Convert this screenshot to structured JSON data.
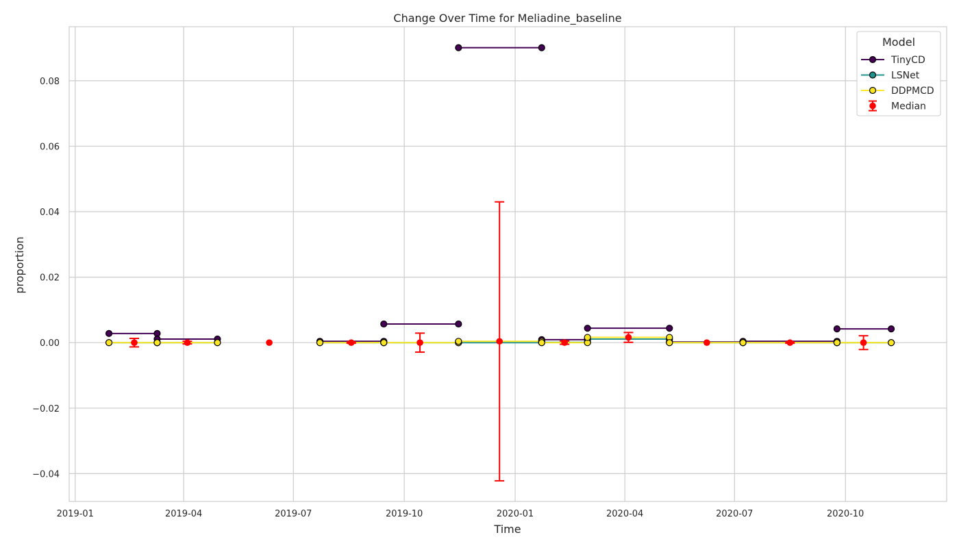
{
  "chart_data": {
    "type": "line",
    "title": "Change Over Time for Meliadine_baseline",
    "xlabel": "Time",
    "ylabel": "proportion",
    "xlim": [
      "2018-12-27",
      "2020-12-24"
    ],
    "ylim": [
      -0.0485,
      0.0965
    ],
    "x_ticks": [
      "2019-01",
      "2019-04",
      "2019-07",
      "2019-10",
      "2020-01",
      "2020-04",
      "2020-07",
      "2020-10"
    ],
    "y_ticks": [
      -0.04,
      -0.02,
      0.0,
      0.02,
      0.04,
      0.06,
      0.08
    ],
    "y_tick_labels": [
      "−0.04",
      "−0.02",
      "0.00",
      "0.02",
      "0.04",
      "0.06",
      "0.08"
    ],
    "grid": true,
    "legend": {
      "title": "Model",
      "placement": "top-right"
    },
    "series": [
      {
        "name": "TinyCD",
        "color": "#440154",
        "segments": [
          {
            "x": [
              "2019-01-29",
              "2019-03-10"
            ],
            "y": [
              0.0028,
              0.0028
            ]
          },
          {
            "x": [
              "2019-03-10",
              "2019-04-29"
            ],
            "y": [
              0.0011,
              0.0011
            ]
          },
          {
            "x": [
              "2019-07-23",
              "2019-09-14"
            ],
            "y": [
              0.0004,
              0.0004
            ]
          },
          {
            "x": [
              "2019-09-14",
              "2019-11-15"
            ],
            "y": [
              0.0057,
              0.0057
            ]
          },
          {
            "x": [
              "2019-11-15",
              "2020-01-23"
            ],
            "y": [
              0.0901,
              0.0901
            ]
          },
          {
            "x": [
              "2020-01-23",
              "2020-03-01"
            ],
            "y": [
              0.0009,
              0.0009
            ]
          },
          {
            "x": [
              "2020-03-01",
              "2020-05-08"
            ],
            "y": [
              0.0044,
              0.0044
            ]
          },
          {
            "x": [
              "2020-05-08",
              "2020-07-08"
            ],
            "y": [
              0.0002,
              0.0002
            ]
          },
          {
            "x": [
              "2020-07-08",
              "2020-09-24"
            ],
            "y": [
              0.0004,
              0.0004
            ]
          },
          {
            "x": [
              "2020-09-24",
              "2020-11-08"
            ],
            "y": [
              0.0042,
              0.0042
            ]
          }
        ]
      },
      {
        "name": "LSNet",
        "color": "#21918c",
        "segments": [
          {
            "x": [
              "2019-01-29",
              "2019-03-10"
            ],
            "y": [
              0.0,
              0.0
            ]
          },
          {
            "x": [
              "2019-03-10",
              "2019-04-29"
            ],
            "y": [
              0.0,
              0.0
            ]
          },
          {
            "x": [
              "2019-07-23",
              "2019-09-14"
            ],
            "y": [
              0.0,
              0.0
            ]
          },
          {
            "x": [
              "2019-09-14",
              "2019-11-15"
            ],
            "y": [
              0.0,
              0.0
            ]
          },
          {
            "x": [
              "2019-11-15",
              "2020-01-23"
            ],
            "y": [
              0.0,
              0.0
            ]
          },
          {
            "x": [
              "2020-01-23",
              "2020-03-01"
            ],
            "y": [
              0.0001,
              0.0001
            ]
          },
          {
            "x": [
              "2020-03-01",
              "2020-05-08"
            ],
            "y": [
              0.0011,
              0.0011
            ]
          },
          {
            "x": [
              "2020-05-08",
              "2020-07-08"
            ],
            "y": [
              0.0,
              0.0
            ]
          },
          {
            "x": [
              "2020-07-08",
              "2020-09-24"
            ],
            "y": [
              0.0,
              0.0
            ]
          },
          {
            "x": [
              "2020-09-24",
              "2020-11-08"
            ],
            "y": [
              0.0,
              0.0
            ]
          }
        ]
      },
      {
        "name": "DDPMCD",
        "color": "#fde725",
        "segments": [
          {
            "x": [
              "2019-01-29",
              "2019-03-10"
            ],
            "y": [
              0.0,
              0.0
            ]
          },
          {
            "x": [
              "2019-03-10",
              "2019-04-29"
            ],
            "y": [
              0.0,
              0.0
            ]
          },
          {
            "x": [
              "2019-07-23",
              "2019-09-14"
            ],
            "y": [
              0.0,
              0.0
            ]
          },
          {
            "x": [
              "2019-09-14",
              "2019-11-15"
            ],
            "y": [
              0.0,
              0.0
            ]
          },
          {
            "x": [
              "2019-11-15",
              "2020-01-23"
            ],
            "y": [
              0.0004,
              0.0004
            ]
          },
          {
            "x": [
              "2020-01-23",
              "2020-03-01"
            ],
            "y": [
              0.0,
              0.0
            ]
          },
          {
            "x": [
              "2020-03-01",
              "2020-05-08"
            ],
            "y": [
              0.0016,
              0.0016
            ]
          },
          {
            "x": [
              "2020-05-08",
              "2020-07-08"
            ],
            "y": [
              0.0,
              0.0
            ]
          },
          {
            "x": [
              "2020-07-08",
              "2020-09-24"
            ],
            "y": [
              0.0,
              0.0
            ]
          },
          {
            "x": [
              "2020-09-24",
              "2020-11-08"
            ],
            "y": [
              0.0,
              0.0
            ]
          }
        ]
      }
    ],
    "median": {
      "name": "Median",
      "color": "#ff0000",
      "points": [
        {
          "x": "2019-02-19",
          "y": 0.0,
          "err": 0.0013
        },
        {
          "x": "2019-04-04",
          "y": 0.0,
          "err": 0.0004
        },
        {
          "x": "2019-06-11",
          "y": 0.0,
          "err": 0.0
        },
        {
          "x": "2019-08-18",
          "y": 0.0,
          "err": 0.0002
        },
        {
          "x": "2019-10-14",
          "y": 0.0,
          "err": 0.0029
        },
        {
          "x": "2019-12-19",
          "y": 0.0004,
          "err": 0.0426
        },
        {
          "x": "2020-02-11",
          "y": 0.0,
          "err": 0.0005
        },
        {
          "x": "2020-04-04",
          "y": 0.0016,
          "err": 0.0015
        },
        {
          "x": "2020-06-08",
          "y": 0.0,
          "err": 0.0
        },
        {
          "x": "2020-08-16",
          "y": 0.0,
          "err": 0.0002
        },
        {
          "x": "2020-10-16",
          "y": 0.0,
          "err": 0.0021
        }
      ]
    }
  }
}
